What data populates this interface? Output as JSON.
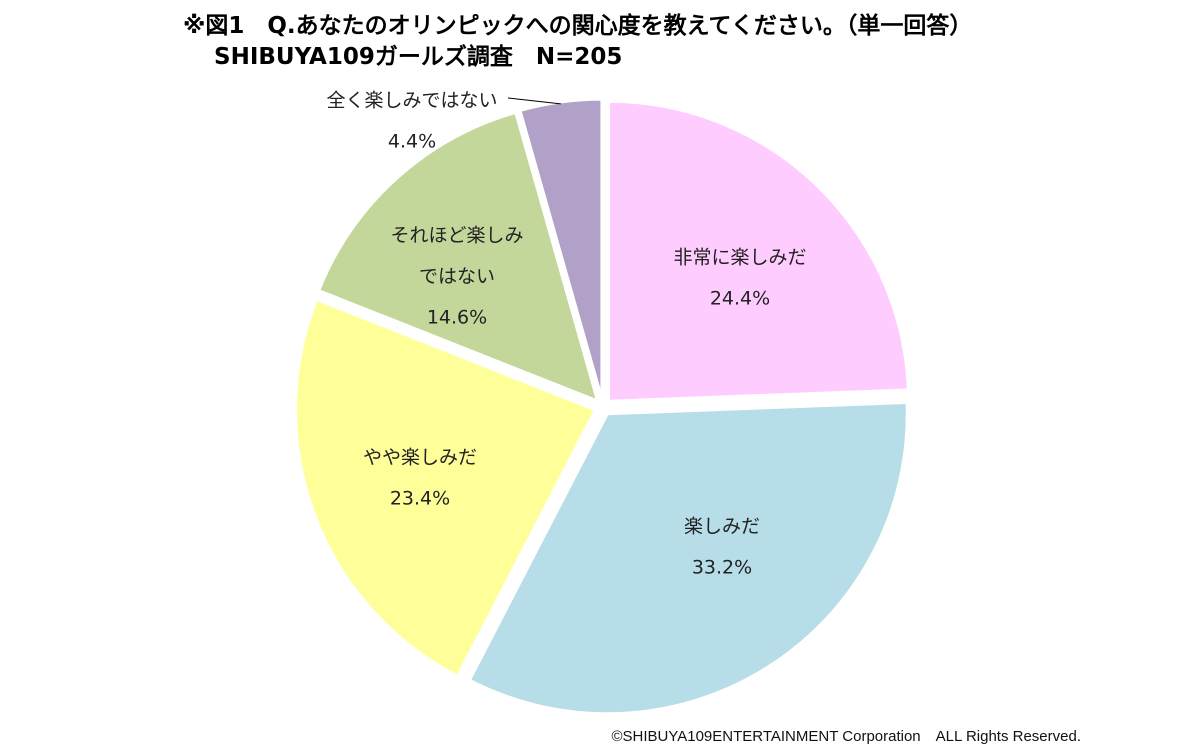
{
  "header": {
    "title_line_1": "※図1　Q.あなたのオリンピックへの関心度を教えてください。（単一回答）",
    "title_line_2": "SHIBUYA109ガールズ調査　N=205"
  },
  "chart_data": {
    "type": "pie",
    "unit": "%",
    "start_angle_deg": 0,
    "direction": "clockwise",
    "exploded": true,
    "slices": [
      {
        "label_lines": [
          "非常に楽しみだ"
        ],
        "value": 24.4,
        "value_label": "24.4%",
        "color": "#FFCCFF"
      },
      {
        "label_lines": [
          "楽しみだ"
        ],
        "value": 33.2,
        "value_label": "33.2%",
        "color": "#B7DDE8"
      },
      {
        "label_lines": [
          "やや楽しみだ"
        ],
        "value": 23.4,
        "value_label": "23.4%",
        "color": "#FFFF99"
      },
      {
        "label_lines": [
          "それほど楽しみ",
          "ではない"
        ],
        "value": 14.6,
        "value_label": "14.6%",
        "color": "#C4D79B"
      },
      {
        "label_lines": [
          "全く楽しみではない"
        ],
        "value": 4.4,
        "value_label": "4.4%",
        "color": "#B1A0C7"
      }
    ]
  },
  "footer": {
    "copyright": "©SHIBUYA109ENTERTAINMENT Corporation　ALL Rights Reserved."
  }
}
